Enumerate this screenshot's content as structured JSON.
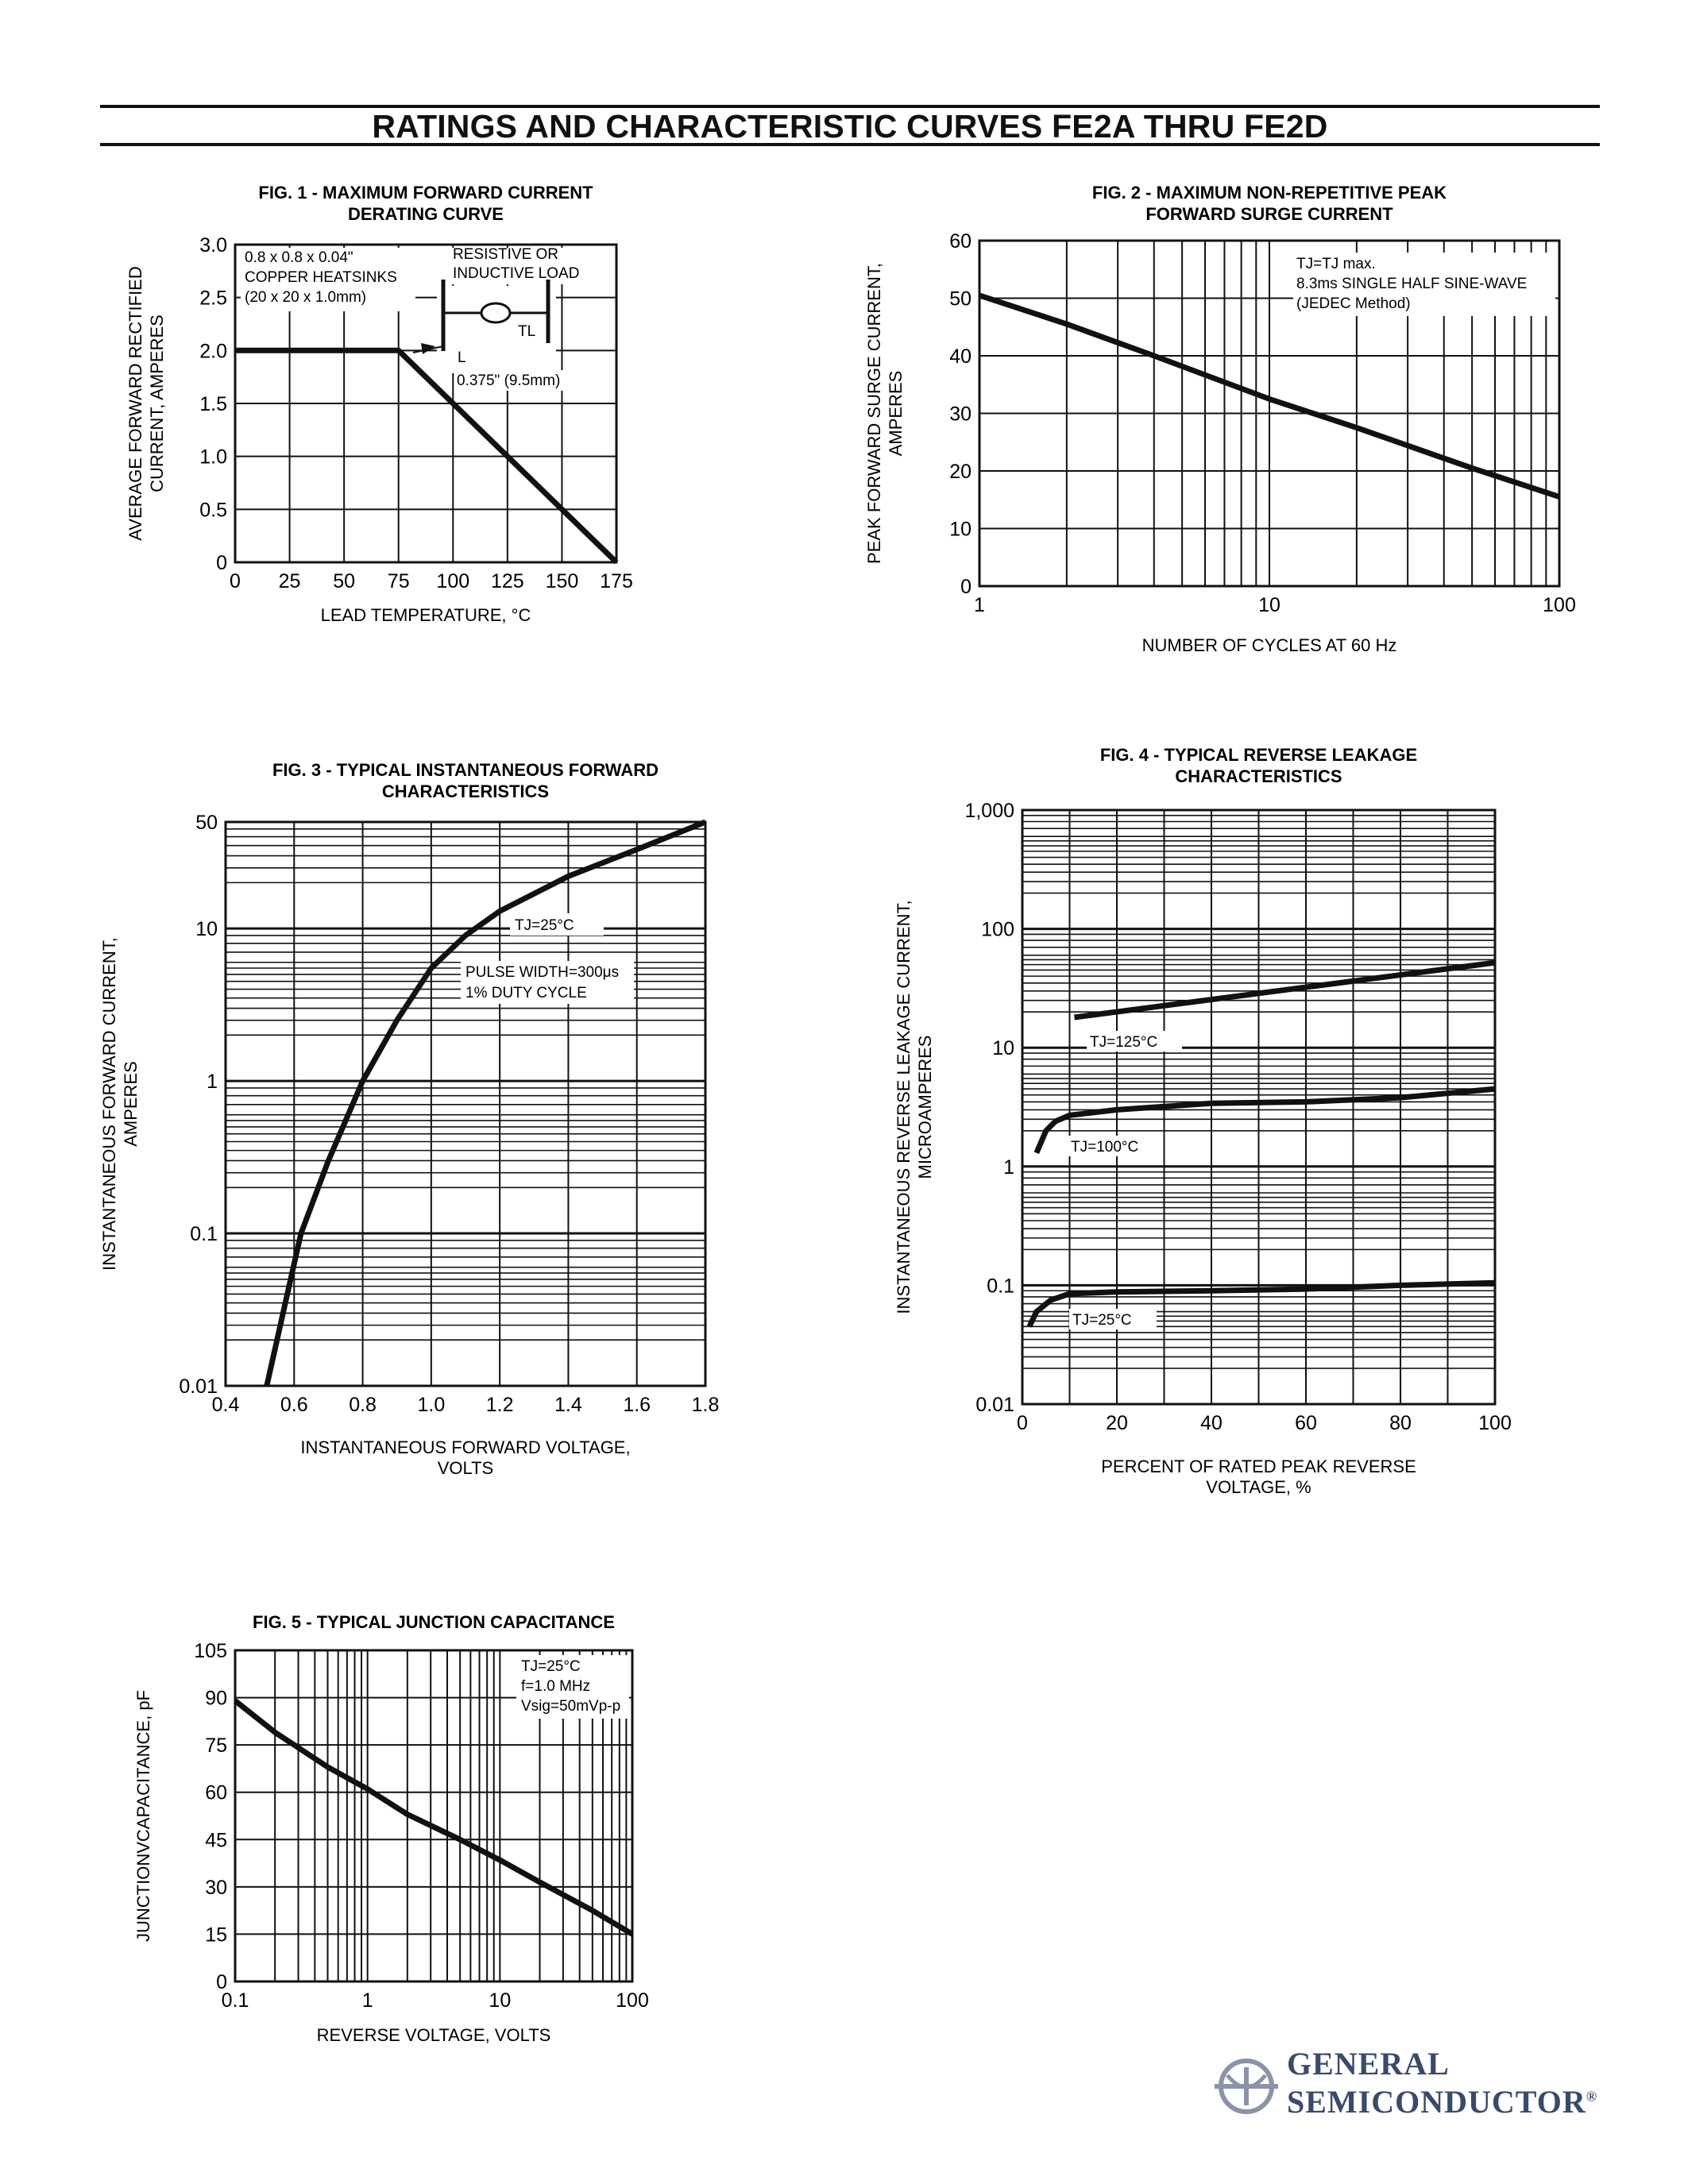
{
  "page_title": "RATINGS AND CHARACTERISTIC CURVES FE2A THRU FE2D",
  "logo": {
    "line1": "GENERAL",
    "line2": "SEMICONDUCTOR",
    "mark": "®"
  },
  "chart_data": [
    {
      "id": "fig1",
      "type": "line",
      "title": [
        "FIG. 1 - MAXIMUM FORWARD CURRENT",
        "DERATING CURVE"
      ],
      "ylabel": [
        "AVERAGE FORWARD RECTIFIED",
        "CURRENT, AMPERES"
      ],
      "xlabel": [
        "LEAD TEMPERATURE, °C"
      ],
      "xscale": "linear",
      "yscale": "linear",
      "xlim": [
        0,
        175
      ],
      "ylim": [
        0,
        3.0
      ],
      "xticks": [
        0,
        25,
        50,
        75,
        100,
        125,
        150,
        175
      ],
      "xtick_labels": [
        "0",
        "25",
        "50",
        "75",
        "100",
        "125",
        "150",
        "175"
      ],
      "yticks": [
        0,
        0.5,
        1.0,
        1.5,
        2.0,
        2.5,
        3.0
      ],
      "ytick_labels": [
        "0",
        "0.5",
        "1.0",
        "1.5",
        "2.0",
        "2.5",
        "3.0"
      ],
      "vgrid": [
        25,
        50,
        75,
        100,
        125,
        150
      ],
      "hgrid": [
        0.5,
        1.0,
        1.5,
        2.0,
        2.5
      ],
      "series": [
        {
          "x": [
            0,
            75,
            175
          ],
          "y": [
            2.0,
            2.0,
            0
          ]
        }
      ],
      "annotations": [
        "0.8 x 0.8 x 0.04\"",
        "COPPER HEATSINKS",
        "(20 x 20 x 1.0mm)",
        "RESISTIVE OR",
        "INDUCTIVE LOAD",
        "TL",
        "L",
        "0.375\" (9.5mm)"
      ]
    },
    {
      "id": "fig2",
      "type": "line",
      "title": [
        "FIG. 2 - MAXIMUM NON-REPETITIVE PEAK",
        "FORWARD SURGE CURRENT"
      ],
      "ylabel": [
        "PEAK FORWARD SURGE CURRENT,",
        "AMPERES"
      ],
      "xlabel": [
        "NUMBER OF CYCLES AT 60 Hz"
      ],
      "xscale": "log",
      "yscale": "linear",
      "xlim": [
        1,
        100
      ],
      "ylim": [
        0,
        60
      ],
      "xticks": [
        1,
        10,
        100
      ],
      "xtick_labels": [
        "1",
        "10",
        "100"
      ],
      "yticks": [
        0,
        10,
        20,
        30,
        40,
        50,
        60
      ],
      "ytick_labels": [
        "0",
        "10",
        "20",
        "30",
        "40",
        "50",
        "60"
      ],
      "vgrid": [
        2,
        3,
        4,
        5,
        6,
        7,
        8,
        9,
        10,
        20,
        30,
        40,
        50,
        60,
        70,
        80,
        90
      ],
      "hgrid": [
        10,
        20,
        30,
        40,
        50
      ],
      "series": [
        {
          "x": [
            1,
            2,
            4,
            10,
            20,
            50,
            100
          ],
          "y": [
            50.5,
            45.5,
            40,
            32.5,
            27.5,
            20.5,
            15.5
          ]
        }
      ],
      "annotations": [
        "TJ=TJ max.",
        "8.3ms SINGLE HALF SINE-WAVE",
        "(JEDEC Method)"
      ]
    },
    {
      "id": "fig3",
      "type": "line",
      "title": [
        "FIG. 3 - TYPICAL INSTANTANEOUS FORWARD",
        "CHARACTERISTICS"
      ],
      "ylabel": [
        "INSTANTANEOUS FORWARD CURRENT,",
        "AMPERES"
      ],
      "xlabel": [
        "INSTANTANEOUS FORWARD VOLTAGE,",
        "VOLTS"
      ],
      "xscale": "linear",
      "yscale": "log",
      "xlim": [
        0.4,
        1.8
      ],
      "ylim": [
        0.01,
        50
      ],
      "xticks": [
        0.4,
        0.6,
        0.8,
        1.0,
        1.2,
        1.4,
        1.6,
        1.8
      ],
      "xtick_labels": [
        "0.4",
        "0.6",
        "0.8",
        "1.0",
        "1.2",
        "1.4",
        "1.6",
        "1.8"
      ],
      "yticks": [
        0.01,
        0.1,
        1,
        10,
        50
      ],
      "ytick_labels": [
        "0.01",
        "0.1",
        "1",
        "10",
        "50"
      ],
      "vgrid": [
        0.6,
        0.8,
        1.0,
        1.2,
        1.4,
        1.6
      ],
      "hgrid_log": true,
      "series": [
        {
          "x": [
            0.52,
            0.58,
            0.62,
            0.7,
            0.8,
            0.9,
            1.0,
            1.1,
            1.2,
            1.4,
            1.6,
            1.8
          ],
          "y": [
            0.01,
            0.04,
            0.1,
            0.3,
            1,
            2.5,
            5.5,
            9,
            13,
            22,
            33,
            50
          ]
        }
      ],
      "annotations": [
        "TJ=25°C",
        "PULSE WIDTH=300μs",
        "1% DUTY CYCLE"
      ]
    },
    {
      "id": "fig4",
      "type": "line",
      "title": [
        "FIG. 4 - TYPICAL REVERSE LEAKAGE",
        "CHARACTERISTICS"
      ],
      "ylabel": [
        "INSTANTANEOUS REVERSE LEAKAGE CURRENT,",
        "MICROAMPERES"
      ],
      "xlabel": [
        "PERCENT OF RATED PEAK REVERSE",
        "VOLTAGE, %"
      ],
      "xscale": "linear",
      "yscale": "log",
      "xlim": [
        0,
        100
      ],
      "ylim": [
        0.01,
        1000
      ],
      "xticks": [
        0,
        20,
        40,
        60,
        80,
        100
      ],
      "xtick_labels": [
        "0",
        "20",
        "40",
        "60",
        "80",
        "100"
      ],
      "yticks": [
        0.01,
        0.1,
        1,
        10,
        100,
        1000
      ],
      "ytick_labels": [
        "0.01",
        "0.1",
        "1",
        "10",
        "100",
        "1,000"
      ],
      "vgrid": [
        10,
        20,
        30,
        40,
        50,
        60,
        70,
        80,
        90
      ],
      "hgrid_log": true,
      "series": [
        {
          "name": "TJ=125°C",
          "x": [
            11,
            100
          ],
          "y": [
            18,
            52
          ]
        },
        {
          "name": "TJ=100°C",
          "x": [
            3,
            5,
            7,
            10,
            20,
            40,
            60,
            80,
            100
          ],
          "y": [
            1.3,
            2.0,
            2.4,
            2.7,
            3.0,
            3.4,
            3.5,
            3.8,
            4.5
          ]
        },
        {
          "name": "TJ=25°C",
          "x": [
            1.5,
            3,
            6,
            10,
            20,
            40,
            60,
            80,
            100
          ],
          "y": [
            0.045,
            0.06,
            0.075,
            0.085,
            0.088,
            0.09,
            0.093,
            0.1,
            0.105
          ]
        }
      ]
    },
    {
      "id": "fig5",
      "type": "line",
      "title": [
        "FIG. 5 - TYPICAL JUNCTION CAPACITANCE"
      ],
      "ylabel": [
        "JUNCTIONVCAPACITANCE, pF"
      ],
      "xlabel": [
        "REVERSE VOLTAGE, VOLTS"
      ],
      "xscale": "log",
      "yscale": "linear",
      "xlim": [
        0.1,
        100
      ],
      "ylim": [
        0,
        105
      ],
      "xticks": [
        0.1,
        1,
        10,
        100
      ],
      "xtick_labels": [
        "0.1",
        "1",
        "10",
        "100"
      ],
      "yticks": [
        0,
        15,
        30,
        45,
        60,
        75,
        90,
        105
      ],
      "ytick_labels": [
        "0",
        "15",
        "30",
        "45",
        "60",
        "75",
        "90",
        "105"
      ],
      "vgrid": [
        0.2,
        0.3,
        0.4,
        0.5,
        0.6,
        0.7,
        0.8,
        0.9,
        1,
        2,
        3,
        4,
        5,
        6,
        7,
        8,
        9,
        10,
        20,
        30,
        40,
        50,
        60,
        70,
        80,
        90
      ],
      "hgrid": [
        15,
        30,
        45,
        60,
        75,
        90
      ],
      "series": [
        {
          "x": [
            0.1,
            0.2,
            0.5,
            1,
            2,
            5,
            10,
            20,
            50,
            100
          ],
          "y": [
            89,
            79,
            68,
            61,
            53,
            45,
            38.5,
            31.5,
            22.5,
            15
          ]
        }
      ],
      "annotations": [
        "TJ=25°C",
        "f=1.0 MHz",
        "Vsig=50mVp-p"
      ]
    }
  ]
}
